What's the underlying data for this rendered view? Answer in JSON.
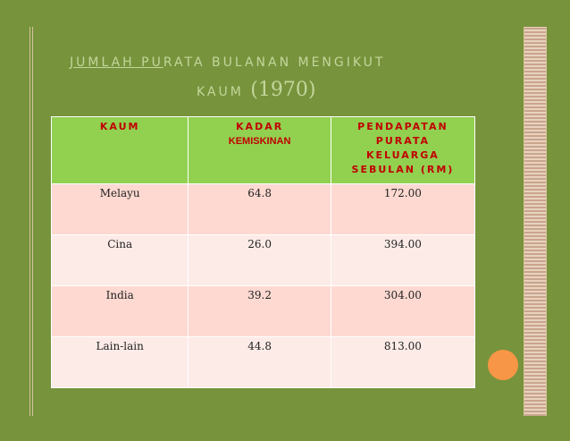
{
  "title": {
    "underlined": "JUMLAH PU",
    "rest": "RATA BULANAN MENGIKUT",
    "line2": "KAUM",
    "year": "(1970)"
  },
  "table": {
    "headers": [
      [
        "KAUM"
      ],
      [
        "KADAR",
        "KEMISKINAN"
      ],
      [
        "PENDAPATAN",
        "PURATA",
        "KELUARGA",
        "SEBULAN (RM)"
      ]
    ],
    "rows": [
      [
        "Melayu",
        "64.8",
        "172.00"
      ],
      [
        "Cina",
        "26.0",
        "394.00"
      ],
      [
        "India",
        "39.2",
        "304.00"
      ],
      [
        "Lain-lain",
        "44.8",
        "813.00"
      ]
    ]
  }
}
